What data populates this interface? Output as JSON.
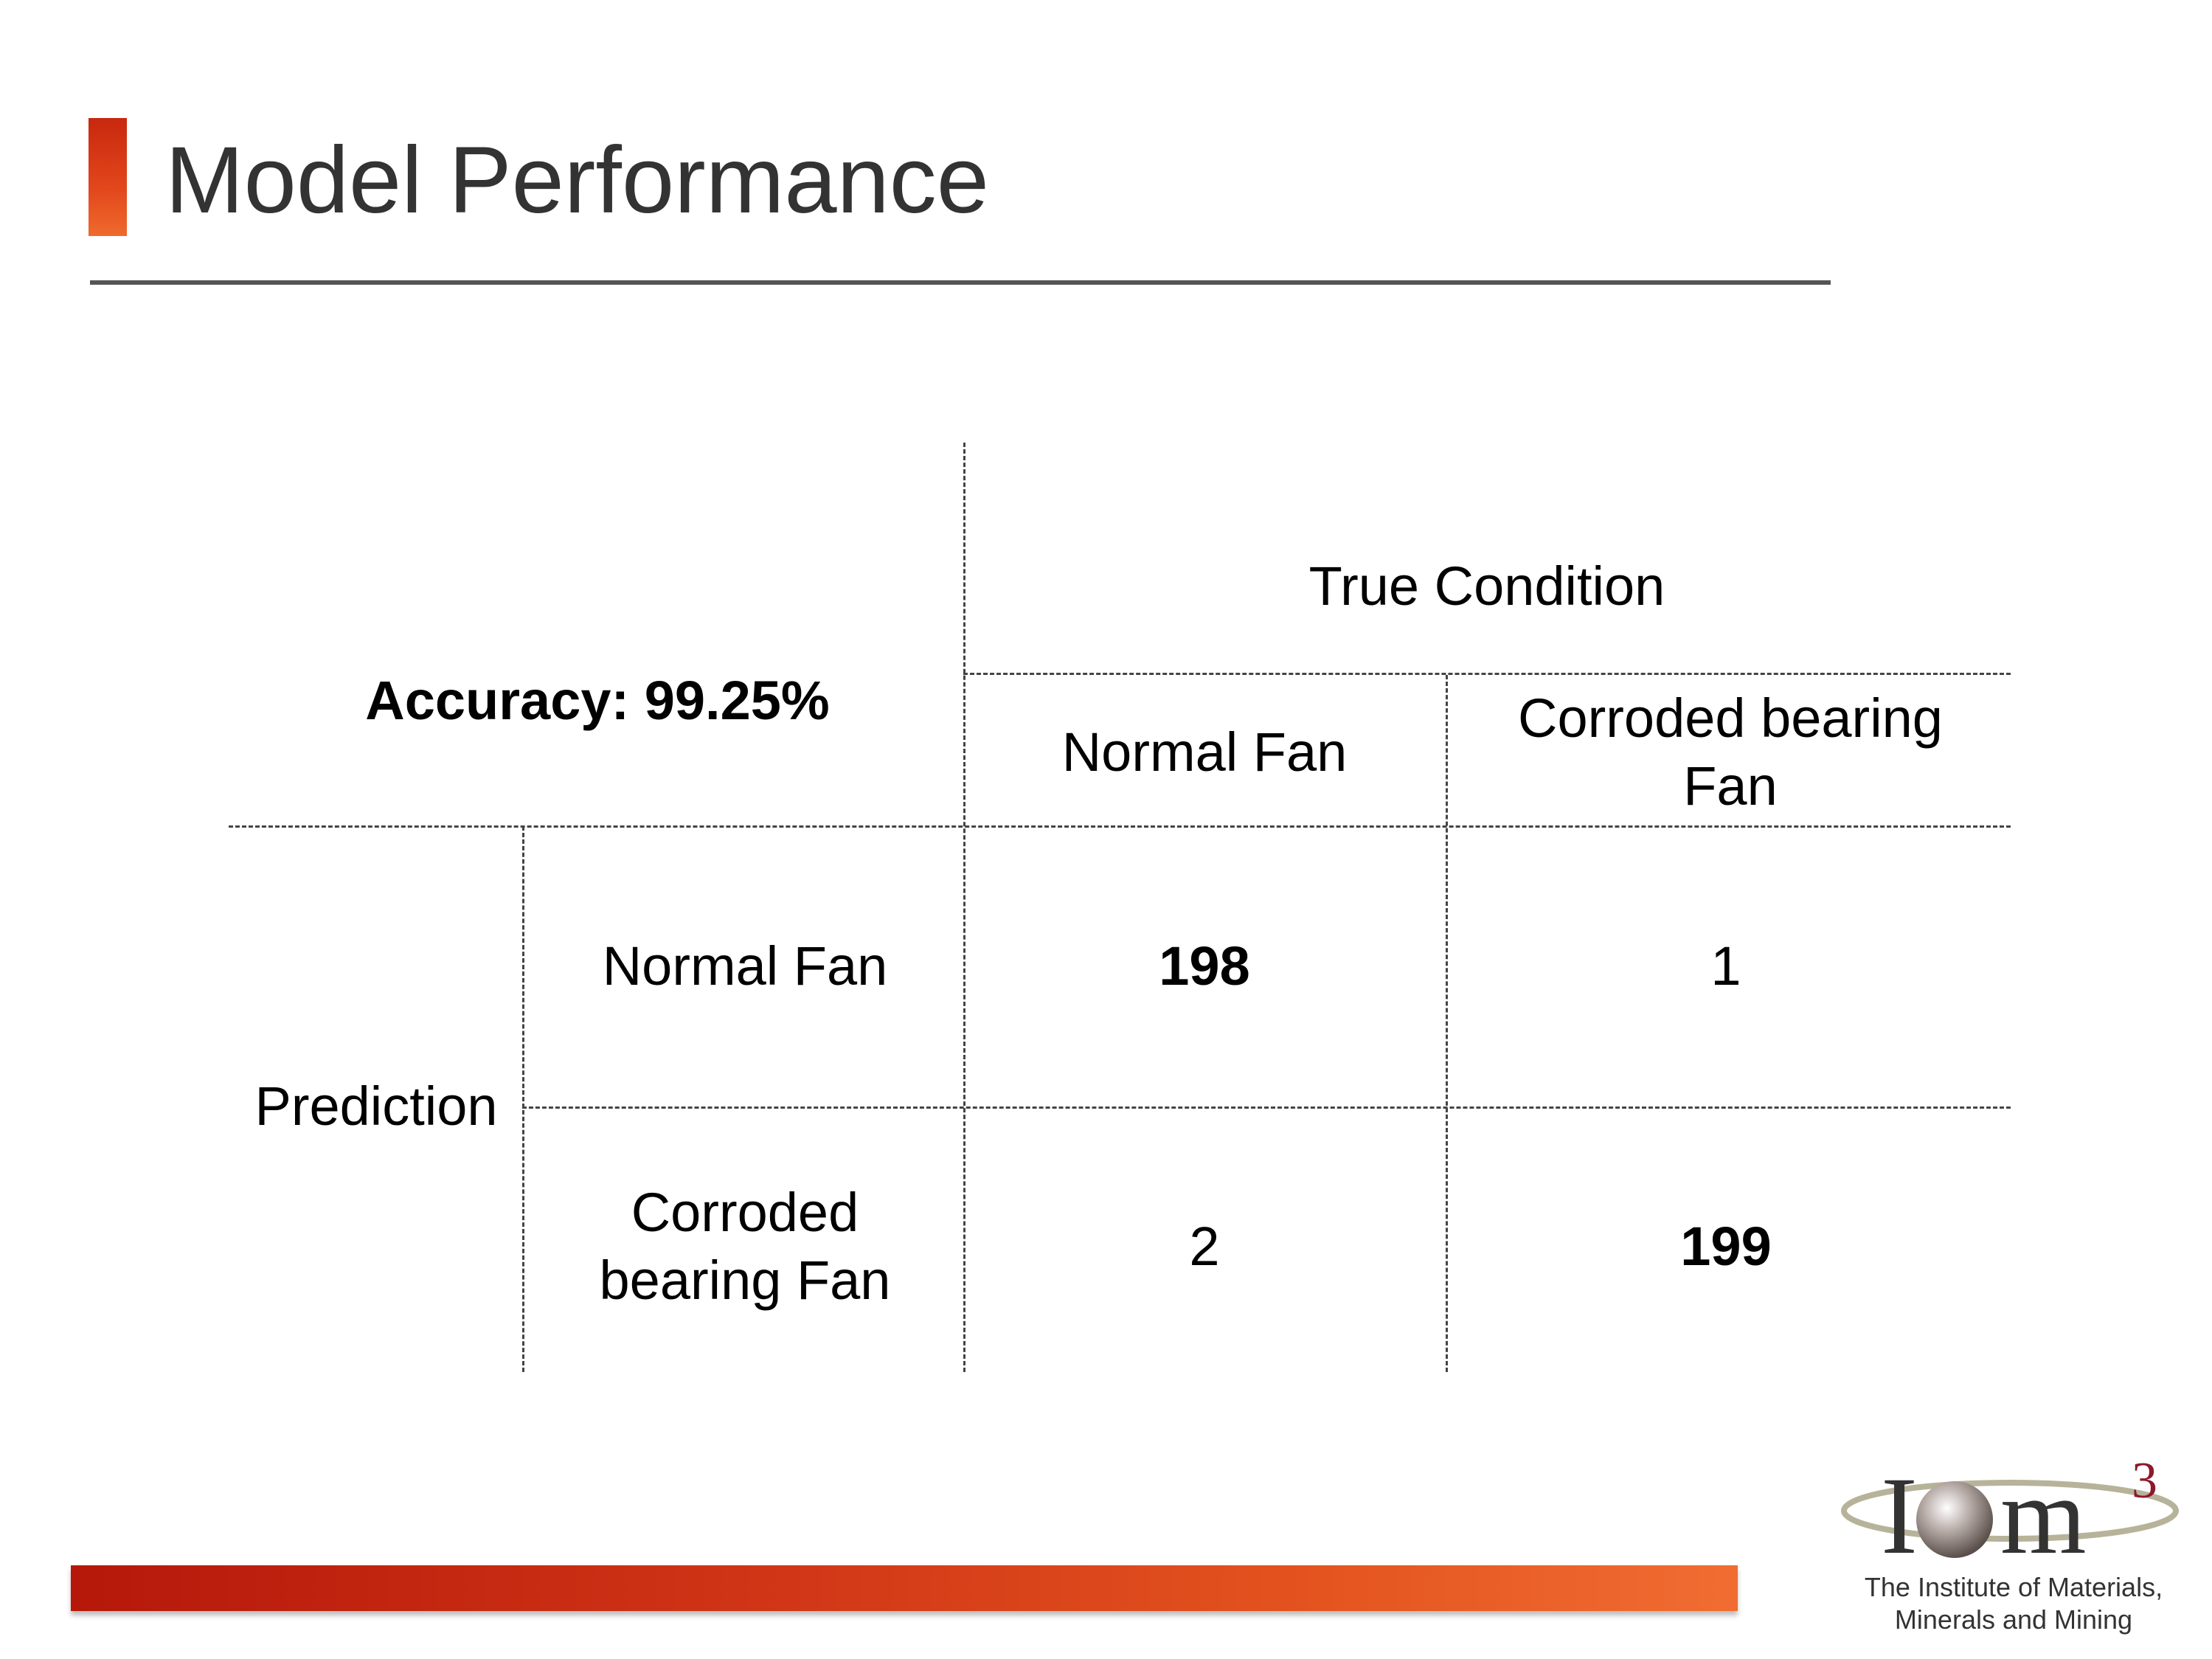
{
  "slide": {
    "title": "Model Performance"
  },
  "matrix": {
    "accuracy_label": "Accuracy: 99.25%",
    "true_condition_label": "True Condition",
    "prediction_label": "Prediction",
    "columns": [
      "Normal Fan",
      "Corroded bearing Fan"
    ],
    "rows": [
      "Normal Fan",
      "Corroded bearing Fan"
    ],
    "values": [
      [
        198,
        1
      ],
      [
        2,
        199
      ]
    ]
  },
  "logo": {
    "name": "logo-iom3",
    "mark_text": "Iom",
    "superscript": "3",
    "line1": "The Institute of Materials,",
    "line2": "Minerals and Mining",
    "colors": {
      "sphere": "#8a7c77",
      "ring": "#b7b39a",
      "superscript": "#8b1a2b"
    }
  },
  "colors": {
    "accent": "#e2471c",
    "title": "#333333"
  }
}
